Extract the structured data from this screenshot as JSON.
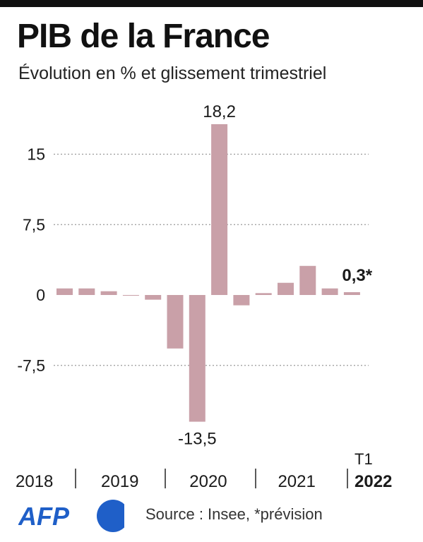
{
  "header": {
    "title": "PIB de la France",
    "subtitle": "Évolution en % et glissement trimestriel"
  },
  "footer": {
    "logo_text": "AFP",
    "source": "Source :  Insee, *prévision"
  },
  "colors": {
    "bar": "#c9a0a8",
    "text": "#1a1a1a",
    "grid": "#9a9a9a",
    "logo_blue": "#1f5fc8"
  },
  "chart_data": {
    "type": "bar",
    "title": "PIB de la France",
    "subtitle": "Évolution en % et glissement trimestriel",
    "ylim": [
      -13.5,
      18.2
    ],
    "yticks": [
      15,
      7.5,
      0,
      -7.5
    ],
    "ytick_labels": [
      "15",
      "7,5",
      "0",
      "-7,5"
    ],
    "grid": true,
    "categories": [
      "2018-Q4",
      "2019-Q1",
      "2019-Q2",
      "2019-Q3",
      "2019-Q4",
      "2020-Q1",
      "2020-Q2",
      "2020-Q3",
      "2020-Q4",
      "2021-Q1",
      "2021-Q2",
      "2021-Q3",
      "2021-Q4",
      "2022-Q1"
    ],
    "values": [
      0.7,
      0.7,
      0.4,
      0.0,
      -0.5,
      -5.7,
      -13.5,
      18.2,
      -1.1,
      0.2,
      1.3,
      3.1,
      0.7,
      0.3
    ],
    "data_labels": [
      {
        "index": 6,
        "text": "-13,5",
        "bold": false
      },
      {
        "index": 7,
        "text": "18,2",
        "bold": false
      },
      {
        "index": 13,
        "text": "0,3*",
        "bold": true
      }
    ],
    "year_labels": [
      {
        "text": "2018",
        "start": 0,
        "end": 0
      },
      {
        "text": "2019",
        "start": 1,
        "end": 4
      },
      {
        "text": "2020",
        "start": 5,
        "end": 8
      },
      {
        "text": "2021",
        "start": 9,
        "end": 12
      },
      {
        "text": "2022",
        "start": 13,
        "end": 13,
        "bold": true,
        "above": "T1"
      }
    ]
  }
}
